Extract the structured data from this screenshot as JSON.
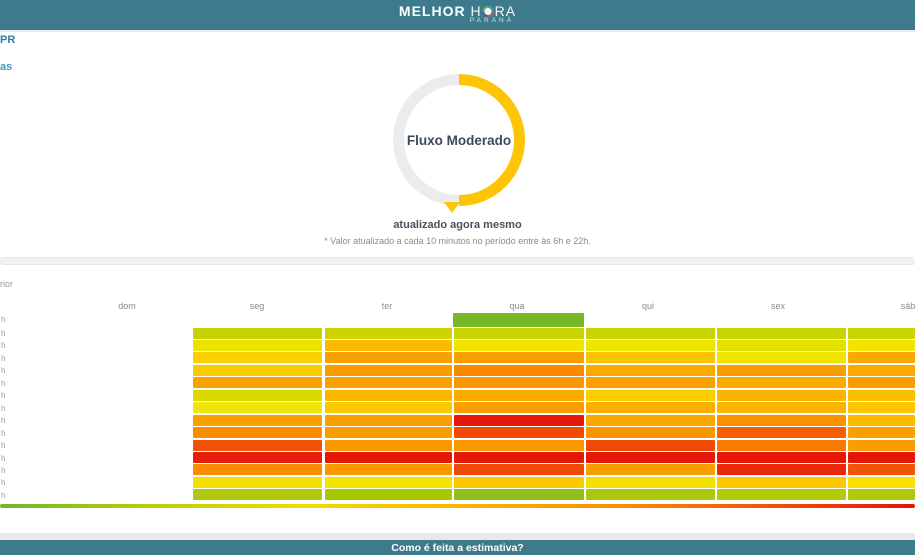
{
  "header": {
    "logo_melhor": "MELHOR",
    "logo_hora_h": "H",
    "logo_hora_ra": "RA",
    "logo_subtitle": "PARANÁ",
    "bg": "#3d7a8c"
  },
  "link_fragments": {
    "top": "PR",
    "second": "as",
    "previous": "rior"
  },
  "gauge": {
    "label": "Fluxo Moderado",
    "arc_color": "#fdc503",
    "track_color": "#ececec",
    "updated": "atualizado agora mesmo",
    "note": "* Valor atualizado a cada 10 minutos no período entre às 6h e 22h."
  },
  "footer": {
    "question": "Como é feita a estimativa?",
    "bg": "#3d7a8c"
  },
  "chart_data": {
    "type": "heatmap",
    "title": "",
    "x_categories": [
      "dom",
      "seg",
      "ter",
      "qua",
      "qui",
      "sex",
      "sáb"
    ],
    "y_categories": [
      "h",
      "h",
      "h",
      "h",
      "h",
      "h",
      "h",
      "h",
      "h",
      "h",
      "h",
      "h",
      "h",
      "h",
      "h"
    ],
    "today_column": "qua",
    "today_bar_color": "#76b82a",
    "empty_columns": [
      "dom"
    ],
    "legend_gradient": [
      "#6fb62c",
      "#b9cf07",
      "#f0dc00",
      "#fbb400",
      "#fa9000",
      "#f2560a",
      "#e41408"
    ],
    "color_matrix": [
      [
        "#c6d302",
        "#ccd400",
        "#c9d301",
        "#c9d301",
        "#c9d301",
        "#cad400"
      ],
      [
        "#ebe400",
        "#fbb901",
        "#f0e400",
        "#ece600",
        "#e4e000",
        "#f3e300"
      ],
      [
        "#fad000",
        "#faa000",
        "#faa000",
        "#fbc300",
        "#f1e500",
        "#fba800"
      ],
      [
        "#fcca00",
        "#fa9b00",
        "#f98a00",
        "#fbab00",
        "#fa9d00",
        "#fbab00"
      ],
      [
        "#faa300",
        "#faa000",
        "#fa9600",
        "#faa000",
        "#fbab00",
        "#fa9d00"
      ],
      [
        "#dcd900",
        "#fbb700",
        "#fbaa00",
        "#fcce00",
        "#fbb500",
        "#fbbf00"
      ],
      [
        "#f2e30b",
        "#fcc800",
        "#fa9d00",
        "#fbb000",
        "#fbb500",
        "#fcc500"
      ],
      [
        "#fa9f00",
        "#faa000",
        "#e5170b",
        "#fba800",
        "#fa9100",
        "#fbba00"
      ],
      [
        "#f98c00",
        "#fa9d00",
        "#f04a02",
        "#fa9600",
        "#f55f02",
        "#faa000"
      ],
      [
        "#f15208",
        "#fa9800",
        "#fa9800",
        "#ee4a05",
        "#f87a00",
        "#fa9d00"
      ],
      [
        "#e51d0a",
        "#e41808",
        "#e5170b",
        "#e5170b",
        "#e5170b",
        "#e5170b"
      ],
      [
        "#f98c00",
        "#fa9800",
        "#ef4a05",
        "#fa9d00",
        "#e8280a",
        "#f25405"
      ],
      [
        "#f2df04",
        "#f4e400",
        "#fcc800",
        "#f3e000",
        "#fcc800",
        "#fbe000"
      ],
      [
        "#aec90f",
        "#a8c900",
        "#8fc020",
        "#abc90c",
        "#b2cb08",
        "#b0ca0b"
      ]
    ]
  }
}
